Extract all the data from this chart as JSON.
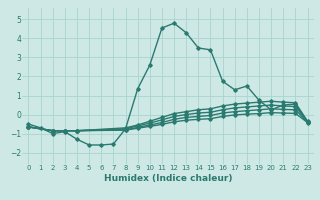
{
  "title": "",
  "xlabel": "Humidex (Indice chaleur)",
  "xlim": [
    -0.5,
    23.5
  ],
  "ylim": [
    -2.6,
    5.6
  ],
  "yticks": [
    -2,
    -1,
    0,
    1,
    2,
    3,
    4,
    5
  ],
  "xticks": [
    0,
    1,
    2,
    3,
    4,
    5,
    6,
    7,
    8,
    9,
    10,
    11,
    12,
    13,
    14,
    15,
    16,
    17,
    18,
    19,
    20,
    21,
    22,
    23
  ],
  "bg_color": "#cee9e5",
  "grid_color": "#aad4ce",
  "line_color": "#2a7a70",
  "line_width": 1.0,
  "marker": "D",
  "marker_size": 1.8,
  "lines": [
    {
      "x": [
        0,
        1,
        2,
        3,
        4,
        5,
        6,
        7,
        8,
        9,
        10,
        11,
        12,
        13,
        14,
        15,
        16,
        17,
        18,
        19,
        20,
        21,
        22,
        23
      ],
      "y": [
        -0.5,
        -0.7,
        -1.0,
        -0.9,
        -1.3,
        -1.6,
        -1.6,
        -1.55,
        -0.75,
        1.35,
        2.6,
        4.55,
        4.8,
        4.3,
        3.5,
        3.4,
        1.75,
        1.3,
        1.5,
        0.75,
        0.25,
        0.5,
        0.55,
        -0.4
      ]
    },
    {
      "x": [
        0,
        2,
        3,
        4,
        8,
        9,
        10,
        11,
        12,
        13,
        14,
        15,
        16,
        17,
        18,
        19,
        20,
        21,
        22,
        23
      ],
      "y": [
        -0.65,
        -0.85,
        -0.85,
        -0.85,
        -0.7,
        -0.55,
        -0.35,
        -0.15,
        0.05,
        0.15,
        0.25,
        0.3,
        0.45,
        0.55,
        0.6,
        0.65,
        0.7,
        0.65,
        0.62,
        -0.35
      ]
    },
    {
      "x": [
        0,
        2,
        3,
        4,
        8,
        9,
        10,
        11,
        12,
        13,
        14,
        15,
        16,
        17,
        18,
        19,
        20,
        21,
        22,
        23
      ],
      "y": [
        -0.65,
        -0.85,
        -0.85,
        -0.85,
        -0.75,
        -0.6,
        -0.45,
        -0.28,
        -0.1,
        0.0,
        0.08,
        0.12,
        0.25,
        0.35,
        0.4,
        0.45,
        0.5,
        0.45,
        0.42,
        -0.38
      ]
    },
    {
      "x": [
        0,
        2,
        3,
        4,
        8,
        9,
        10,
        11,
        12,
        13,
        14,
        15,
        16,
        17,
        18,
        19,
        20,
        21,
        22,
        23
      ],
      "y": [
        -0.65,
        -0.85,
        -0.85,
        -0.85,
        -0.8,
        -0.68,
        -0.55,
        -0.42,
        -0.25,
        -0.15,
        -0.1,
        -0.05,
        0.08,
        0.15,
        0.2,
        0.25,
        0.3,
        0.27,
        0.25,
        -0.4
      ]
    },
    {
      "x": [
        0,
        2,
        3,
        4,
        8,
        9,
        10,
        11,
        12,
        13,
        14,
        15,
        16,
        17,
        18,
        19,
        20,
        21,
        22,
        23
      ],
      "y": [
        -0.65,
        -0.85,
        -0.85,
        -0.85,
        -0.82,
        -0.72,
        -0.62,
        -0.52,
        -0.38,
        -0.3,
        -0.25,
        -0.22,
        -0.1,
        -0.02,
        0.02,
        0.05,
        0.1,
        0.08,
        0.06,
        -0.42
      ]
    }
  ]
}
